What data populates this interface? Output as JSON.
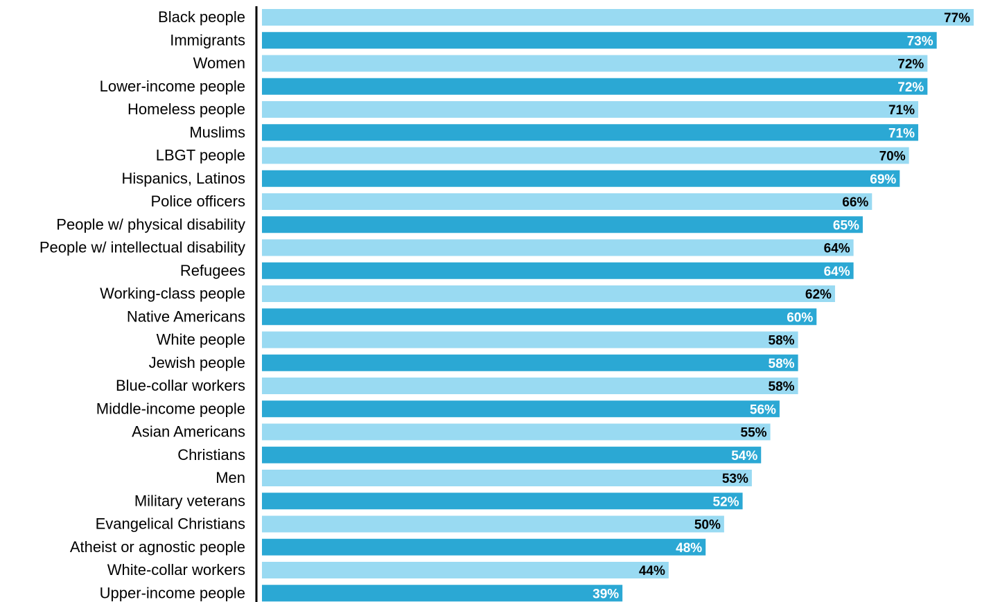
{
  "chart_data": {
    "type": "bar",
    "orientation": "horizontal",
    "categories": [
      "Black people",
      "Immigrants",
      "Women",
      "Lower-income people",
      "Homeless people",
      "Muslims",
      "LBGT people",
      "Hispanics, Latinos",
      "Police officers",
      "People w/ physical disability",
      "People w/ intellectual disability",
      "Refugees",
      "Working-class people",
      "Native Americans",
      "White people",
      "Jewish people",
      "Blue-collar workers",
      "Middle-income people",
      "Asian Americans",
      "Christians",
      "Men",
      "Military veterans",
      "Evangelical Christians",
      "Atheist or agnostic people",
      "White-collar workers",
      "Upper-income people"
    ],
    "values": [
      77,
      73,
      72,
      72,
      71,
      71,
      70,
      69,
      66,
      65,
      64,
      64,
      62,
      60,
      58,
      58,
      58,
      56,
      55,
      54,
      53,
      52,
      50,
      48,
      44,
      39
    ],
    "value_labels": [
      "77%",
      "73%",
      "72%",
      "72%",
      "71%",
      "71%",
      "70%",
      "69%",
      "66%",
      "65%",
      "64%",
      "64%",
      "62%",
      "60%",
      "58%",
      "58%",
      "58%",
      "56%",
      "55%",
      "54%",
      "53%",
      "52%",
      "50%",
      "48%",
      "44%",
      "39%"
    ],
    "unit": "%",
    "xlim": [
      0,
      77
    ],
    "grid": false,
    "legend": "none",
    "colors": {
      "light_bar": "#99daf2",
      "dark_bar": "#2ba8d4",
      "light_bar_label": "#000000",
      "dark_bar_label": "#ffffff",
      "axis_line": "#000000"
    }
  }
}
